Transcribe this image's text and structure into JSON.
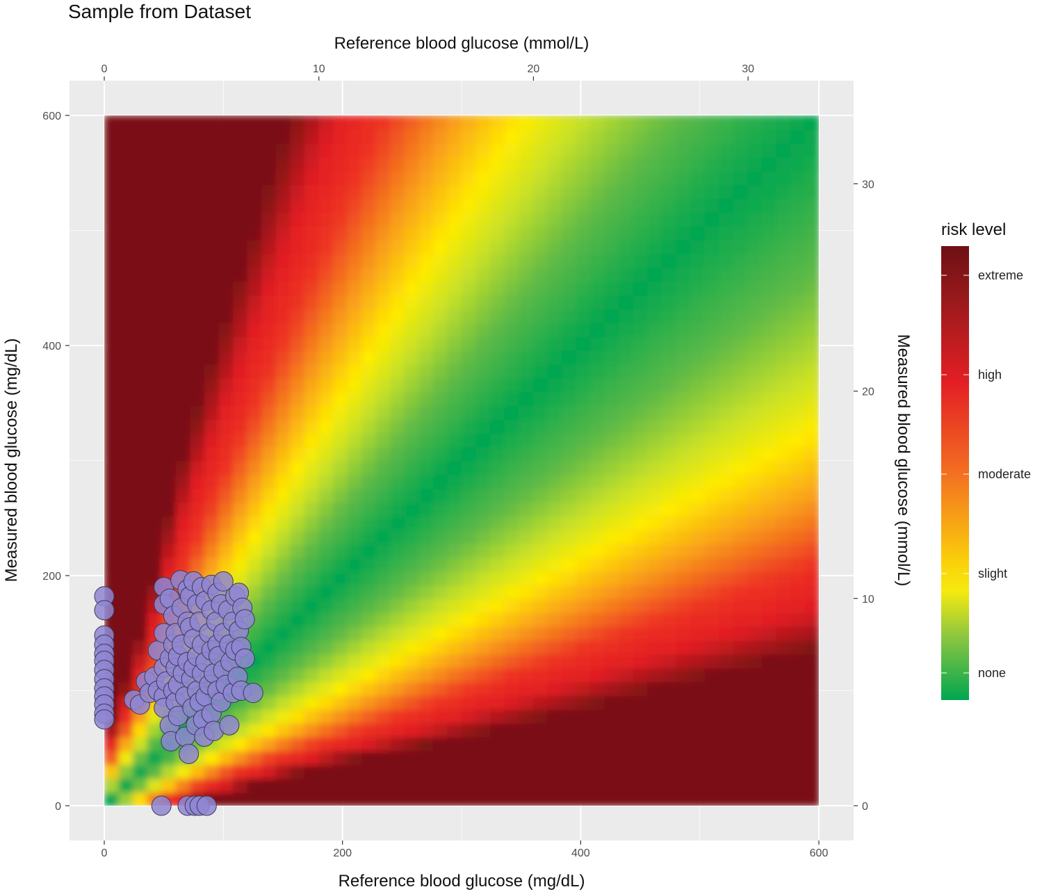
{
  "chart_data": {
    "type": "scatter",
    "title": "Sample from Dataset",
    "xlabel": "Reference blood glucose (mg/dL)",
    "ylabel": "Measured blood glucose (mg/dL)",
    "x2label": "Reference blood glucose (mmol/L)",
    "y2label": "Measured blood glucose (mmol/L)",
    "xlim": [
      0,
      600
    ],
    "ylim": [
      0,
      600
    ],
    "x_ticks": [
      0,
      200,
      400,
      600
    ],
    "y_ticks": [
      0,
      200,
      400,
      600
    ],
    "x2_ticks": [
      0,
      10,
      20,
      30
    ],
    "y2_ticks": [
      0,
      10,
      20,
      30
    ],
    "mmol_factor": 18.0182,
    "grid": true,
    "background": "risk-surface heatmap (surveillance error grid)",
    "legend": {
      "title": "risk level",
      "position": "right",
      "labels": [
        "extreme",
        "high",
        "moderate",
        "slight",
        "none"
      ],
      "colors": [
        "#7a1115",
        "#e8211f",
        "#f7941d",
        "#fff200",
        "#00a651"
      ]
    },
    "point_color": "#8f86d2",
    "point_stroke": "#3d3a5c",
    "series": [
      {
        "name": "samples",
        "points": [
          [
            0,
            182
          ],
          [
            0,
            170
          ],
          [
            0,
            148
          ],
          [
            0,
            140
          ],
          [
            0,
            132
          ],
          [
            0,
            126
          ],
          [
            0,
            118
          ],
          [
            0,
            110
          ],
          [
            0,
            102
          ],
          [
            0,
            95
          ],
          [
            0,
            88
          ],
          [
            0,
            80
          ],
          [
            0,
            75
          ],
          [
            25,
            92
          ],
          [
            30,
            88
          ],
          [
            35,
            108
          ],
          [
            38,
            98
          ],
          [
            42,
            112
          ],
          [
            45,
            100
          ],
          [
            45,
            135
          ],
          [
            48,
            0
          ],
          [
            50,
            190
          ],
          [
            50,
            175
          ],
          [
            50,
            150
          ],
          [
            50,
            120
          ],
          [
            50,
            95
          ],
          [
            50,
            85
          ],
          [
            52,
            108
          ],
          [
            55,
            180
          ],
          [
            55,
            128
          ],
          [
            55,
            70
          ],
          [
            56,
            56
          ],
          [
            58,
            165
          ],
          [
            58,
            140
          ],
          [
            58,
            100
          ],
          [
            60,
            150
          ],
          [
            60,
            120
          ],
          [
            60,
            90
          ],
          [
            62,
            130
          ],
          [
            62,
            105
          ],
          [
            62,
            78
          ],
          [
            64,
            196
          ],
          [
            65,
            172
          ],
          [
            65,
            140
          ],
          [
            66,
            115
          ],
          [
            68,
            60
          ],
          [
            68,
            95
          ],
          [
            70,
            188
          ],
          [
            70,
            160
          ],
          [
            70,
            125
          ],
          [
            70,
            0
          ],
          [
            71,
            45
          ],
          [
            72,
            182
          ],
          [
            72,
            155
          ],
          [
            73,
            110
          ],
          [
            74,
            85
          ],
          [
            75,
            195
          ],
          [
            75,
            145
          ],
          [
            75,
            120
          ],
          [
            76,
            0
          ],
          [
            77,
            70
          ],
          [
            78,
            175
          ],
          [
            78,
            130
          ],
          [
            78,
            100
          ],
          [
            80,
            160
          ],
          [
            80,
            90
          ],
          [
            80,
            0
          ],
          [
            82,
            190
          ],
          [
            82,
            140
          ],
          [
            82,
            115
          ],
          [
            83,
            75
          ],
          [
            84,
            60
          ],
          [
            85,
            178
          ],
          [
            85,
            125
          ],
          [
            85,
            95
          ],
          [
            86,
            0
          ],
          [
            88,
            150
          ],
          [
            88,
            105
          ],
          [
            90,
            192
          ],
          [
            90,
            170
          ],
          [
            90,
            135
          ],
          [
            90,
            80
          ],
          [
            92,
            115
          ],
          [
            92,
            65
          ],
          [
            94,
            160
          ],
          [
            95,
            185
          ],
          [
            95,
            140
          ],
          [
            95,
            100
          ],
          [
            96,
            130
          ],
          [
            98,
            175
          ],
          [
            98,
            90
          ],
          [
            100,
            150
          ],
          [
            100,
            118
          ],
          [
            100,
            195
          ],
          [
            102,
            105
          ],
          [
            104,
            170
          ],
          [
            105,
            140
          ],
          [
            106,
            125
          ],
          [
            108,
            98
          ],
          [
            108,
            160
          ],
          [
            110,
            182
          ],
          [
            110,
            135
          ],
          [
            112,
            112
          ],
          [
            113,
            152
          ],
          [
            105,
            70
          ],
          [
            113,
            185
          ],
          [
            115,
            100
          ],
          [
            115,
            138
          ],
          [
            116,
            172
          ],
          [
            118,
            128
          ],
          [
            118,
            162
          ],
          [
            125,
            98
          ]
        ]
      }
    ]
  }
}
